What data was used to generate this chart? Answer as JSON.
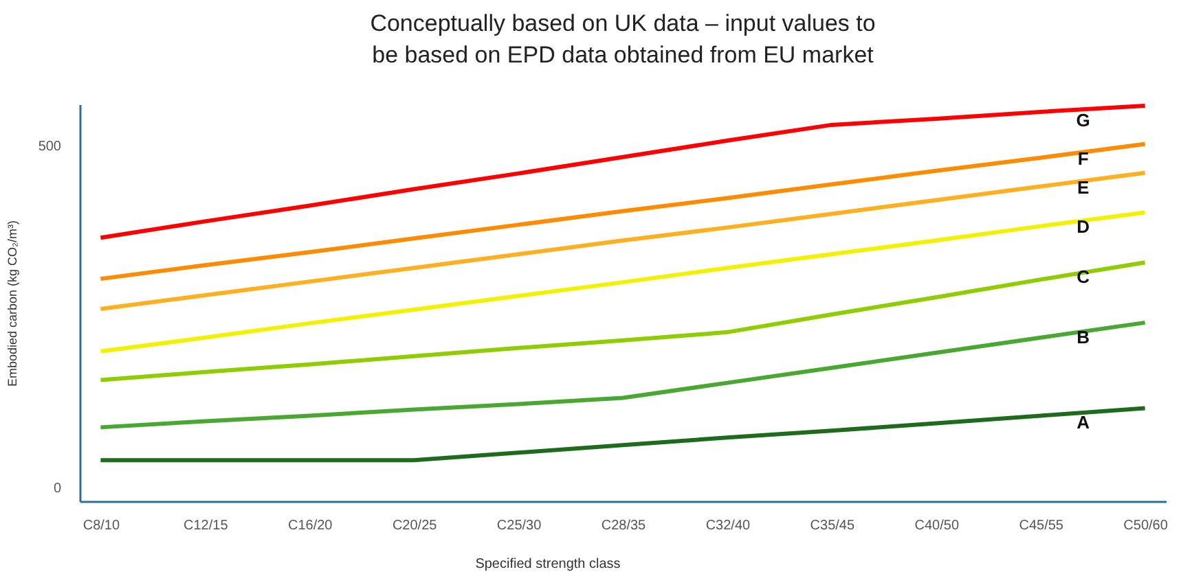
{
  "chart_data": {
    "type": "line",
    "title": "Conceptually based on UK data  – input values to be based on EPD data obtained from EU market",
    "xlabel": "Specified strength class",
    "ylabel": "Embodied carbon (kg CO₂/m³)",
    "categories": [
      "C8/10",
      "C12/15",
      "C16/20",
      "C20/25",
      "C25/30",
      "C28/35",
      "C32/40",
      "C35/45",
      "C40/50",
      "C45/55",
      "C50/60"
    ],
    "ylim": [
      -20,
      560
    ],
    "yticks": [
      0,
      500
    ],
    "grid": false,
    "legend": false,
    "marker": "none",
    "line_style": "solid",
    "series": [
      {
        "name": "G",
        "color": "#ff0000",
        "values": [
          365,
          389,
          412,
          436,
          459,
          483,
          507,
          530,
          539,
          549,
          558
        ]
      },
      {
        "name": "F",
        "color": "#ff8c00",
        "values": [
          305,
          325,
          344,
          364,
          384,
          404,
          423,
          443,
          463,
          482,
          502
        ]
      },
      {
        "name": "E",
        "color": "#ffb020",
        "values": [
          261,
          281,
          301,
          321,
          341,
          361,
          380,
          400,
          420,
          440,
          460
        ]
      },
      {
        "name": "D",
        "color": "#f2f200",
        "values": [
          199,
          219,
          240,
          260,
          280,
          300,
          321,
          341,
          361,
          382,
          402
        ]
      },
      {
        "name": "C",
        "color": "#8fcc00",
        "values": [
          157,
          169,
          180,
          192,
          204,
          215,
          227,
          253,
          278,
          304,
          329
        ]
      },
      {
        "name": "B",
        "color": "#4aa832",
        "values": [
          88,
          97,
          105,
          114,
          122,
          131,
          153,
          175,
          197,
          219,
          241
        ]
      },
      {
        "name": "A",
        "color": "#1e6b1e",
        "values": [
          40,
          40,
          40,
          40,
          51,
          62,
          73,
          83,
          94,
          105,
          116
        ]
      }
    ]
  }
}
